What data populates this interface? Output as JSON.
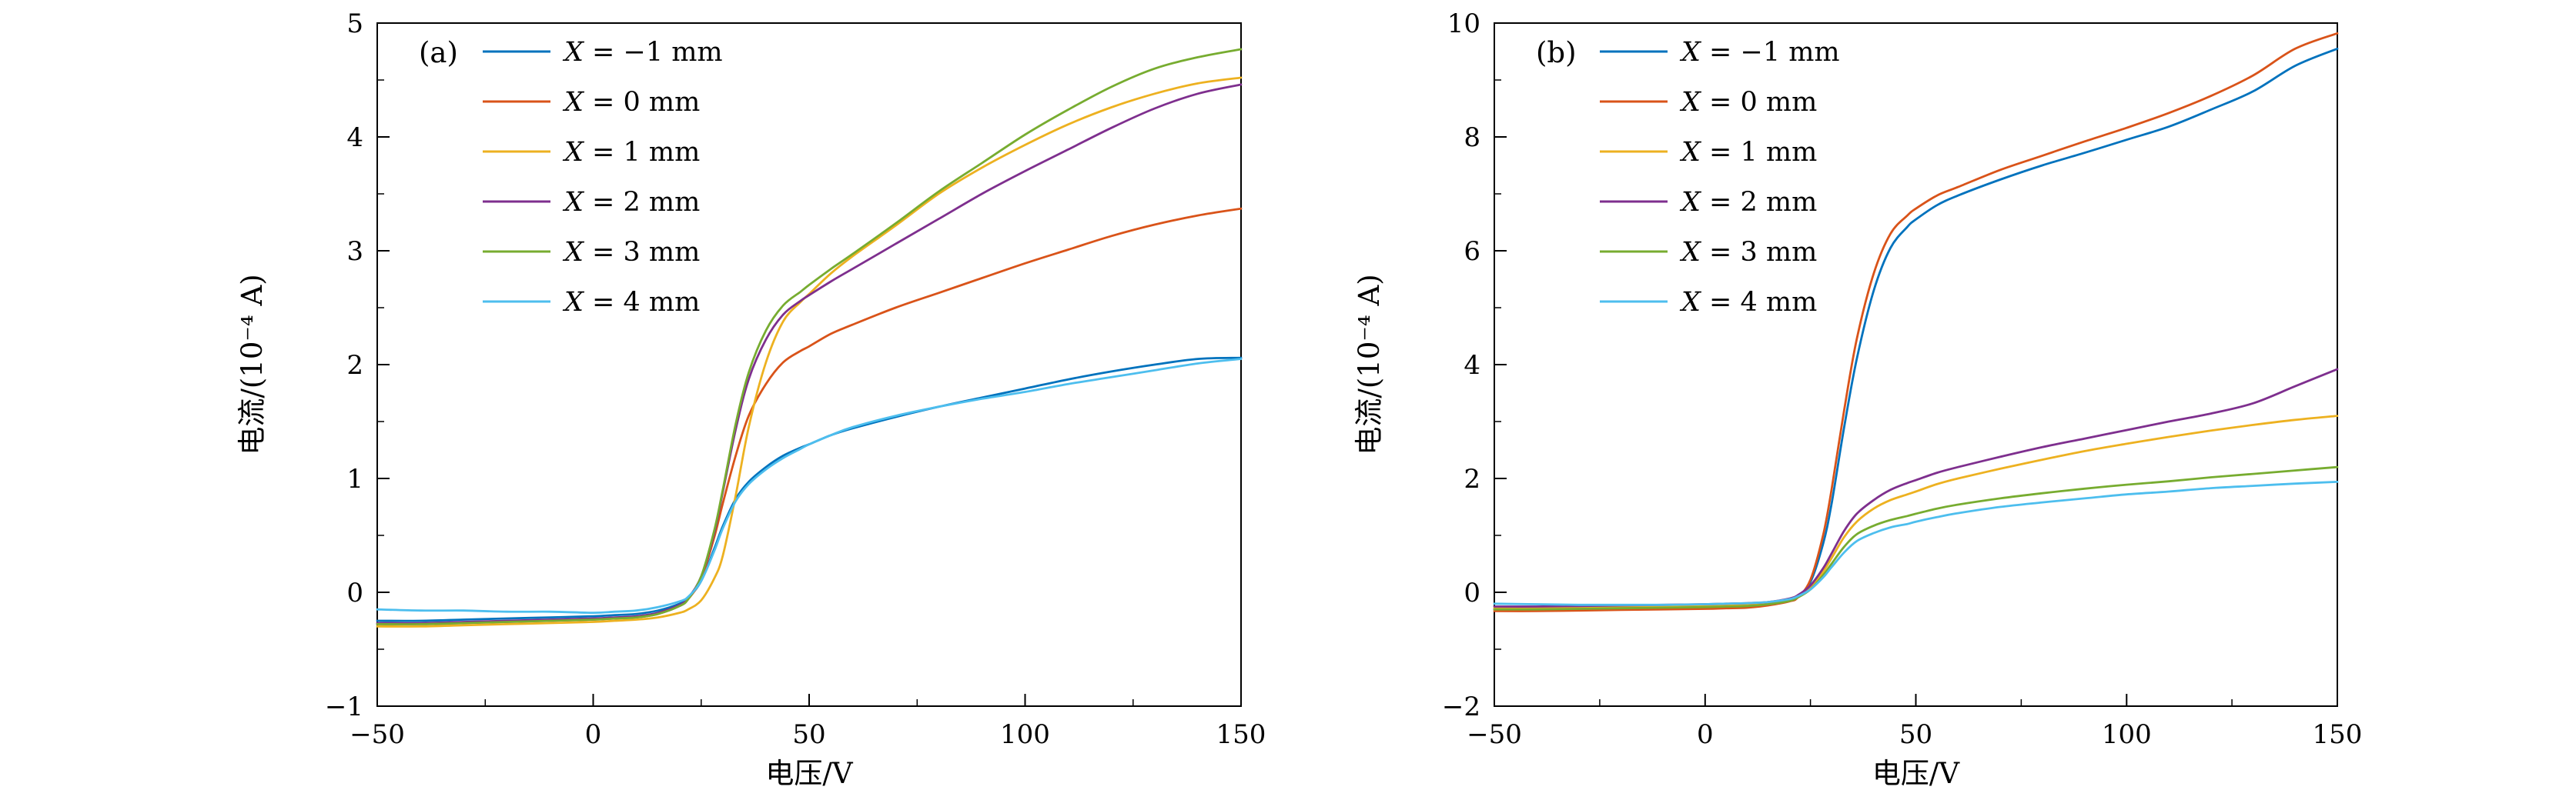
{
  "figure": {
    "description": "Two-panel I-V characteristic line charts",
    "background": "#ffffff",
    "axis_color": "#000000"
  },
  "chart_data": [
    {
      "type": "line",
      "panel_label": "(a)",
      "title": "",
      "xlabel": "电压/V",
      "ylabel": "电流/(10⁻⁴ A)",
      "xlim": [
        -50,
        150
      ],
      "ylim": [
        -1,
        5
      ],
      "xticks": [
        -50,
        0,
        50,
        100,
        150
      ],
      "yticks": [
        -1,
        0,
        1,
        2,
        3,
        4,
        5
      ],
      "grid": false,
      "legend_position": "upper-left",
      "x": [
        -50,
        -40,
        -30,
        -20,
        -10,
        0,
        5,
        10,
        15,
        20,
        22,
        25,
        28,
        30,
        33,
        36,
        40,
        44,
        48,
        50,
        55,
        60,
        70,
        80,
        90,
        100,
        110,
        120,
        130,
        140,
        150
      ],
      "series": [
        {
          "name": "X = −1 mm",
          "color": "#0072bd",
          "values": [
            -0.25,
            -0.25,
            -0.24,
            -0.23,
            -0.22,
            -0.21,
            -0.2,
            -0.19,
            -0.16,
            -0.1,
            -0.05,
            0.1,
            0.38,
            0.58,
            0.82,
            0.97,
            1.1,
            1.2,
            1.27,
            1.3,
            1.38,
            1.44,
            1.54,
            1.63,
            1.71,
            1.79,
            1.87,
            1.94,
            2.0,
            2.05,
            2.06
          ]
        },
        {
          "name": "X = 0 mm",
          "color": "#d95319",
          "values": [
            -0.28,
            -0.28,
            -0.27,
            -0.26,
            -0.25,
            -0.24,
            -0.23,
            -0.22,
            -0.19,
            -0.12,
            -0.06,
            0.12,
            0.48,
            0.78,
            1.2,
            1.55,
            1.83,
            2.02,
            2.12,
            2.16,
            2.27,
            2.35,
            2.5,
            2.63,
            2.76,
            2.89,
            3.01,
            3.13,
            3.23,
            3.31,
            3.37
          ]
        },
        {
          "name": "X = 1 mm",
          "color": "#edb120",
          "values": [
            -0.3,
            -0.3,
            -0.29,
            -0.28,
            -0.27,
            -0.26,
            -0.25,
            -0.24,
            -0.22,
            -0.18,
            -0.15,
            -0.07,
            0.12,
            0.32,
            0.85,
            1.45,
            2.02,
            2.38,
            2.55,
            2.62,
            2.8,
            2.95,
            3.22,
            3.5,
            3.73,
            3.93,
            4.11,
            4.26,
            4.38,
            4.47,
            4.52
          ]
        },
        {
          "name": "X = 2 mm",
          "color": "#7e2f8e",
          "values": [
            -0.27,
            -0.27,
            -0.26,
            -0.25,
            -0.24,
            -0.23,
            -0.22,
            -0.21,
            -0.18,
            -0.11,
            -0.05,
            0.14,
            0.52,
            0.88,
            1.43,
            1.87,
            2.22,
            2.44,
            2.56,
            2.61,
            2.73,
            2.84,
            3.06,
            3.28,
            3.5,
            3.7,
            3.89,
            4.08,
            4.25,
            4.38,
            4.46
          ]
        },
        {
          "name": "X = 3 mm",
          "color": "#77ac30",
          "values": [
            -0.28,
            -0.28,
            -0.27,
            -0.26,
            -0.25,
            -0.24,
            -0.23,
            -0.22,
            -0.19,
            -0.12,
            -0.06,
            0.14,
            0.54,
            0.9,
            1.48,
            1.93,
            2.3,
            2.52,
            2.64,
            2.7,
            2.84,
            2.97,
            3.24,
            3.52,
            3.77,
            4.02,
            4.24,
            4.44,
            4.6,
            4.7,
            4.77
          ]
        },
        {
          "name": "X = 4 mm",
          "color": "#4dbeee",
          "values": [
            -0.15,
            -0.16,
            -0.16,
            -0.17,
            -0.17,
            -0.18,
            -0.17,
            -0.16,
            -0.13,
            -0.08,
            -0.04,
            0.1,
            0.36,
            0.56,
            0.8,
            0.95,
            1.08,
            1.18,
            1.26,
            1.3,
            1.38,
            1.45,
            1.55,
            1.63,
            1.7,
            1.76,
            1.83,
            1.89,
            1.95,
            2.01,
            2.05
          ]
        }
      ]
    },
    {
      "type": "line",
      "panel_label": "(b)",
      "title": "",
      "xlabel": "电压/V",
      "ylabel": "电流/(10⁻⁴ A)",
      "xlim": [
        -50,
        150
      ],
      "ylim": [
        -2,
        10
      ],
      "xticks": [
        -50,
        0,
        50,
        100,
        150
      ],
      "yticks": [
        -2,
        0,
        2,
        4,
        6,
        8,
        10
      ],
      "grid": false,
      "legend_position": "upper-left",
      "x": [
        -50,
        -40,
        -30,
        -20,
        -10,
        0,
        5,
        10,
        15,
        20,
        22,
        25,
        28,
        30,
        33,
        36,
        40,
        44,
        48,
        50,
        55,
        60,
        70,
        80,
        90,
        100,
        110,
        120,
        130,
        140,
        150
      ],
      "series": [
        {
          "name": "X = −1 mm",
          "color": "#0072bd",
          "values": [
            -0.3,
            -0.3,
            -0.29,
            -0.28,
            -0.27,
            -0.26,
            -0.25,
            -0.24,
            -0.21,
            -0.14,
            -0.08,
            0.18,
            0.85,
            1.55,
            2.9,
            4.1,
            5.3,
            6.05,
            6.42,
            6.55,
            6.8,
            6.97,
            7.25,
            7.5,
            7.72,
            7.95,
            8.18,
            8.48,
            8.8,
            9.25,
            9.55
          ]
        },
        {
          "name": "X = 0 mm",
          "color": "#d95319",
          "values": [
            -0.33,
            -0.33,
            -0.32,
            -0.31,
            -0.3,
            -0.29,
            -0.28,
            -0.27,
            -0.23,
            -0.16,
            -0.09,
            0.22,
            1.0,
            1.8,
            3.2,
            4.45,
            5.6,
            6.3,
            6.62,
            6.74,
            6.97,
            7.12,
            7.42,
            7.67,
            7.92,
            8.16,
            8.42,
            8.72,
            9.08,
            9.55,
            9.82
          ]
        },
        {
          "name": "X = 1 mm",
          "color": "#edb120",
          "values": [
            -0.28,
            -0.28,
            -0.27,
            -0.26,
            -0.25,
            -0.24,
            -0.23,
            -0.22,
            -0.19,
            -0.13,
            -0.07,
            0.08,
            0.36,
            0.6,
            0.97,
            1.24,
            1.47,
            1.62,
            1.72,
            1.77,
            1.9,
            2.0,
            2.17,
            2.33,
            2.48,
            2.61,
            2.73,
            2.84,
            2.94,
            3.03,
            3.1
          ]
        },
        {
          "name": "X = 2 mm",
          "color": "#7e2f8e",
          "values": [
            -0.25,
            -0.25,
            -0.24,
            -0.23,
            -0.22,
            -0.21,
            -0.2,
            -0.19,
            -0.17,
            -0.11,
            -0.05,
            0.12,
            0.42,
            0.68,
            1.08,
            1.38,
            1.62,
            1.8,
            1.92,
            1.97,
            2.1,
            2.2,
            2.38,
            2.55,
            2.7,
            2.85,
            3.0,
            3.14,
            3.32,
            3.62,
            3.92
          ]
        },
        {
          "name": "X = 3 mm",
          "color": "#77ac30",
          "values": [
            -0.3,
            -0.3,
            -0.29,
            -0.28,
            -0.27,
            -0.26,
            -0.25,
            -0.24,
            -0.21,
            -0.15,
            -0.09,
            0.05,
            0.3,
            0.5,
            0.8,
            1.02,
            1.17,
            1.27,
            1.34,
            1.38,
            1.47,
            1.54,
            1.65,
            1.74,
            1.82,
            1.89,
            1.95,
            2.02,
            2.08,
            2.14,
            2.2
          ]
        },
        {
          "name": "X = 4 mm",
          "color": "#4dbeee",
          "values": [
            -0.2,
            -0.21,
            -0.22,
            -0.22,
            -0.22,
            -0.21,
            -0.2,
            -0.19,
            -0.17,
            -0.12,
            -0.07,
            0.05,
            0.26,
            0.44,
            0.7,
            0.9,
            1.04,
            1.14,
            1.2,
            1.24,
            1.32,
            1.39,
            1.5,
            1.58,
            1.65,
            1.72,
            1.77,
            1.83,
            1.87,
            1.91,
            1.94
          ]
        }
      ]
    }
  ]
}
